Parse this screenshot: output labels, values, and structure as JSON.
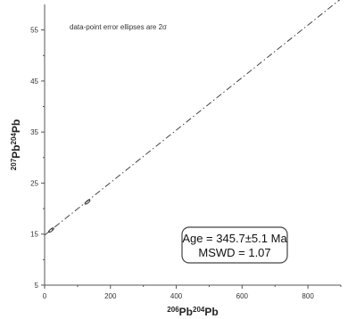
{
  "chart_data": {
    "type": "scatter",
    "title": "",
    "annotation": "data-point error ellipses are 2σ",
    "xlabel": {
      "base": "Pb",
      "sup1": "206",
      "sup2": "204"
    },
    "ylabel": {
      "base": "Pb",
      "sup1": "207",
      "sup2": "204"
    },
    "xlim": [
      0,
      900
    ],
    "ylim": [
      5,
      60
    ],
    "x_ticks": [
      0,
      200,
      400,
      600,
      800
    ],
    "y_ticks": [
      5,
      15,
      25,
      35,
      45,
      55
    ],
    "grid": false,
    "isochron": {
      "x": [
        0,
        900
      ],
      "y": [
        14.8,
        61.1
      ]
    },
    "points": [
      {
        "x": 20,
        "y": 15.8
      },
      {
        "x": 130,
        "y": 21.3
      }
    ],
    "result_box": {
      "line1": "Age = 345.7±5.1 Ma",
      "line2": "MSWD = 1.07"
    }
  }
}
